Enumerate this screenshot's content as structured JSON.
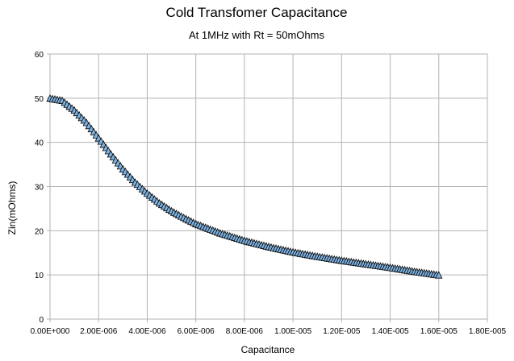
{
  "chart_data": {
    "type": "line",
    "title": "Cold Transfomer Capacitance",
    "subtitle": "At 1MHz with Rt = 50mOhms",
    "xlabel": "Capacitance",
    "ylabel": "Zin(mOhms)",
    "xlim": [
      0,
      1.8e-05
    ],
    "ylim": [
      0,
      60
    ],
    "xticks": [
      0,
      2e-06,
      4e-06,
      6e-06,
      8e-06,
      1e-05,
      1.2e-05,
      1.4e-05,
      1.6e-05,
      1.8e-05
    ],
    "xtick_labels": [
      "0.00E+000",
      "2.00E-006",
      "4.00E-006",
      "6.00E-006",
      "8.00E-006",
      "1.00E-005",
      "1.20E-005",
      "1.40E-005",
      "1.60E-005",
      "1.80E-005"
    ],
    "yticks": [
      0,
      10,
      20,
      30,
      40,
      50,
      60
    ],
    "ytick_labels": [
      "0",
      "10",
      "20",
      "30",
      "40",
      "50",
      "60"
    ],
    "grid": true,
    "legend": "none",
    "marker": "triangle",
    "series": [
      {
        "color": "#1f77b4",
        "marker_fill": "#7fb2e0",
        "x": [
          0,
          5e-07,
          1e-06,
          1.5e-06,
          2e-06,
          2.5e-06,
          3e-06,
          3.5e-06,
          4e-06,
          4.5e-06,
          5e-06,
          5.5e-06,
          6e-06,
          7e-06,
          8e-06,
          9e-06,
          1e-05,
          1.1e-05,
          1.2e-05,
          1.3e-05,
          1.4e-05,
          1.5e-05,
          1.6e-05
        ],
        "y": [
          50,
          49.5,
          47.3,
          44.5,
          41,
          37.4,
          34,
          31,
          28.5,
          26.3,
          24.5,
          23,
          21.6,
          19.5,
          17.8,
          16.4,
          15.2,
          14.2,
          13.3,
          12.5,
          11.7,
          10.8,
          10
        ]
      }
    ]
  }
}
